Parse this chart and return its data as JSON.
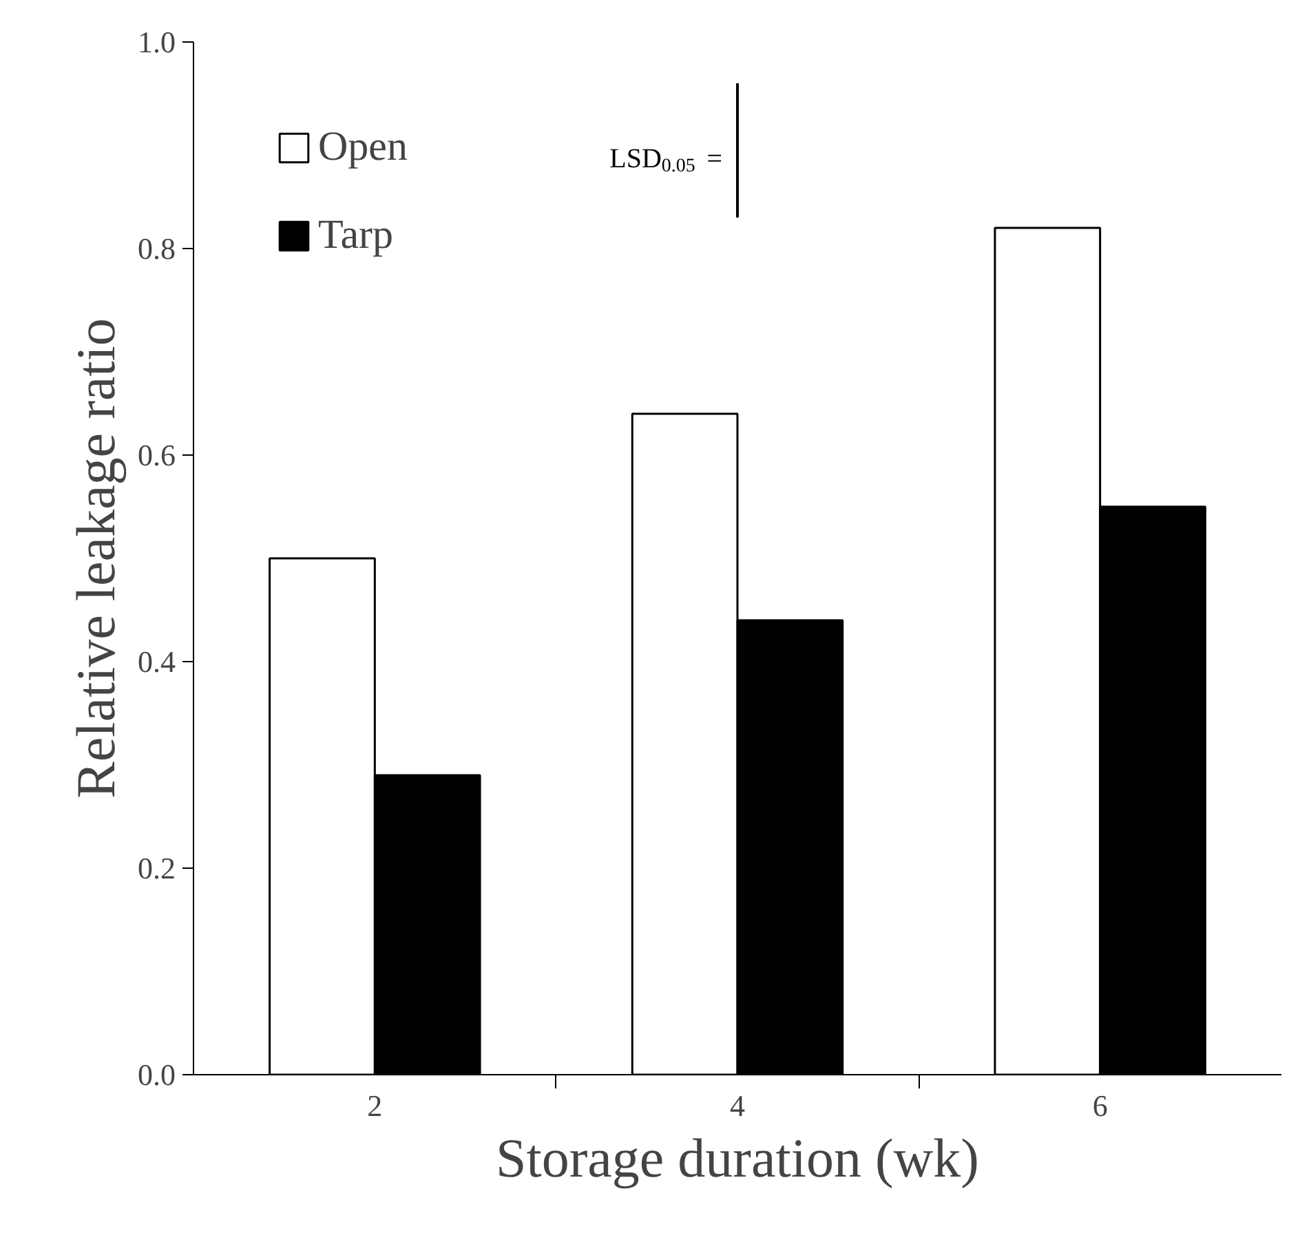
{
  "chart_data": {
    "type": "bar",
    "xlabel": "Storage duration (wk)",
    "ylabel": "Relative leakage ratio",
    "categories": [
      "2",
      "4",
      "6"
    ],
    "series": [
      {
        "name": "Open",
        "color": "#ffffff",
        "values": [
          0.5,
          0.64,
          0.82
        ]
      },
      {
        "name": "Tarp",
        "color": "#000000",
        "values": [
          0.29,
          0.44,
          0.55
        ]
      },
      {
        "type": "line",
        "color": "#000000",
        "x": [
          "4",
          "4"
        ],
        "values": [
          0.83,
          0.96
        ]
      }
    ],
    "annotations": [
      {
        "text": "LSD$_{0.05}$ =",
        "x": "4",
        "y": 0.895
      }
    ],
    "ylim": [
      0,
      1.0
    ],
    "yticks": [
      {
        "value": 0,
        "label": "0.0"
      },
      0.2,
      0.4,
      0.6,
      0.8,
      {
        "value": 1.0,
        "label": "1.0"
      }
    ],
    "grid": false,
    "legend": "top left"
  }
}
